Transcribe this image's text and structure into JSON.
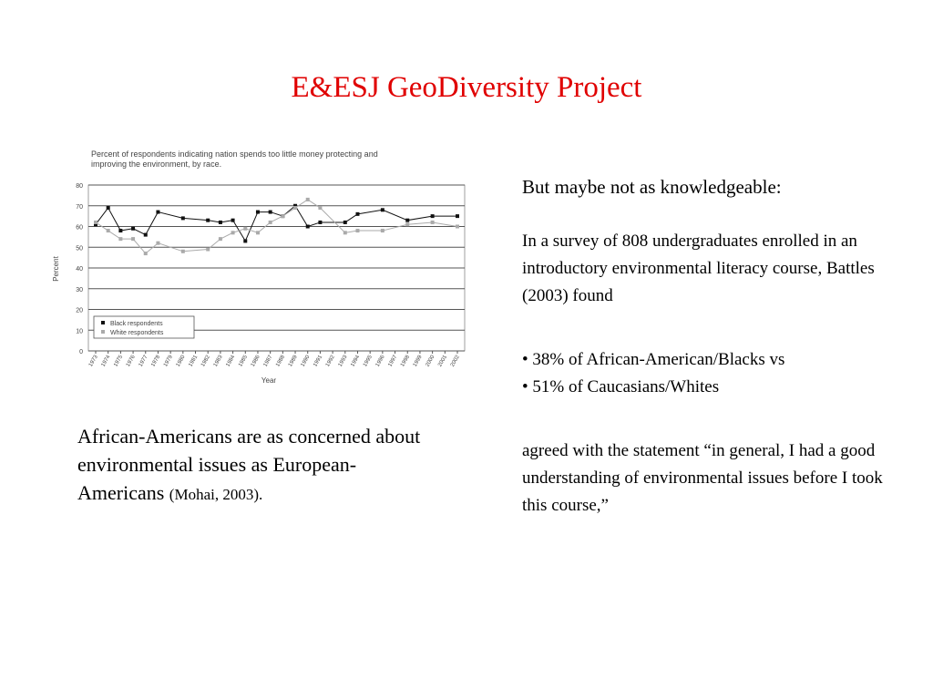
{
  "title": "E&ESJ GeoDiversity Project",
  "chart_data": {
    "type": "line",
    "title": "Percent of respondents indicating nation spends too little money protecting and improving the environment, by race.",
    "x_label": "Year",
    "y_label": "Percent",
    "x": [
      1973,
      1974,
      1975,
      1976,
      1977,
      1978,
      1980,
      1982,
      1983,
      1984,
      1985,
      1986,
      1987,
      1988,
      1989,
      1990,
      1991,
      1993,
      1994,
      1996,
      1998,
      2000,
      2002
    ],
    "series": [
      {
        "name": "Black respondents",
        "color": "#111111",
        "values": [
          61,
          69,
          58,
          59,
          56,
          67,
          64,
          63,
          62,
          63,
          53,
          67,
          67,
          65,
          70,
          60,
          62,
          62,
          66,
          68,
          63,
          65,
          65
        ]
      },
      {
        "name": "White respondents",
        "color": "#aaaaaa",
        "values": [
          62,
          58,
          54,
          54,
          47,
          52,
          48,
          49,
          54,
          57,
          59,
          57,
          62,
          65,
          69,
          73,
          69,
          57,
          58,
          58,
          61,
          62,
          60
        ]
      }
    ],
    "xlim": [
      1973,
      2002
    ],
    "xticks": [
      1973,
      1974,
      1975,
      1976,
      1977,
      1978,
      1979,
      1980,
      1981,
      1982,
      1983,
      1984,
      1985,
      1986,
      1987,
      1988,
      1989,
      1990,
      1991,
      1992,
      1993,
      1994,
      1995,
      1996,
      1997,
      1998,
      1999,
      2000,
      2001,
      2002
    ],
    "ylim": [
      0,
      80
    ],
    "yticks": [
      0,
      10,
      20,
      30,
      40,
      50,
      60,
      70,
      80
    ],
    "grid": true,
    "legend": "lower left"
  },
  "left_text": {
    "main": "African-Americans are as concerned about environmental issues as European-Americans",
    "citation": "(Mohai, 2003)."
  },
  "right_text": {
    "heading": "But maybe not as knowledgeable:",
    "paragraph": "In a survey of 808 undergraduates enrolled in an introductory environmental literacy course, Battles (2003) found",
    "bullets": [
      "• 38% of African-American/Blacks vs",
      "• 51% of Caucasians/Whites"
    ],
    "closing": "agreed with the statement “in general, I had a good understanding of environmental issues before I took this course,”"
  }
}
